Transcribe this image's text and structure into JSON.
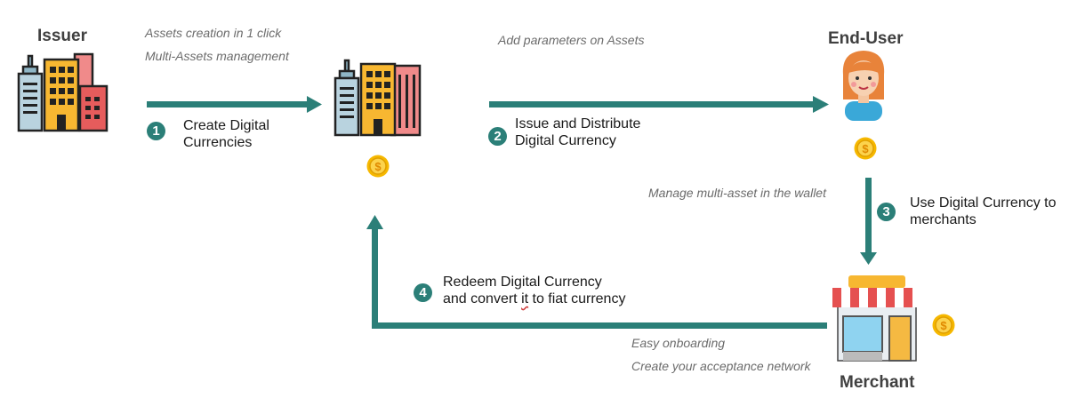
{
  "colors": {
    "arrow": "#2b7f78",
    "coin": "#f6b800"
  },
  "nodes": {
    "issuer": {
      "title": "Issuer",
      "icon": "buildings-icon"
    },
    "hub": {
      "icon": "buildings-icon"
    },
    "end_user": {
      "title": "End-User",
      "icon": "woman-avatar-icon"
    },
    "merchant": {
      "title": "Merchant",
      "icon": "storefront-icon"
    }
  },
  "notes": {
    "assets_creation": "Assets creation in 1 click",
    "multi_assets": "Multi-Assets management",
    "add_parameters": "Add parameters on Assets",
    "manage_wallet": "Manage multi-asset in the wallet",
    "easy_onboarding": "Easy onboarding",
    "acceptance_network": "Create your acceptance network"
  },
  "steps": [
    {
      "number": "1",
      "line1": "Create Digital",
      "line2": "Currencies"
    },
    {
      "number": "2",
      "line1": "Issue and Distribute",
      "line2": "Digital Currency"
    },
    {
      "number": "3",
      "line1": "Use Digital Currency to",
      "line2": "merchants"
    },
    {
      "number": "4",
      "line1": "Redeem Digital Currency",
      "line2a": "and convert ",
      "line2b": "it",
      "line2c": " to fiat currency"
    }
  ],
  "coin_symbol": "$"
}
